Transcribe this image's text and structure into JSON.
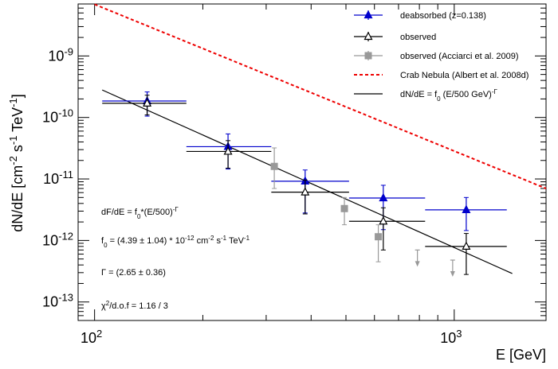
{
  "chart_data": {
    "type": "scatter",
    "xlabel": "E  [GeV]",
    "ylabel_html": [
      "dN/dE [cm",
      "-2",
      " s",
      "-1",
      " TeV",
      "-1",
      "]"
    ],
    "xscale": "log",
    "yscale": "log",
    "xlim": [
      90,
      1800
    ],
    "ylim": [
      5e-14,
      7e-09
    ],
    "x_tick_labels": [
      {
        "value": 100,
        "base": "10",
        "exp": "2"
      },
      {
        "value": 1000,
        "base": "10",
        "exp": "3"
      }
    ],
    "y_tick_labels": [
      {
        "value": 1e-13,
        "base": "10",
        "exp": "-13"
      },
      {
        "value": 1e-12,
        "base": "10",
        "exp": "-12"
      },
      {
        "value": 1e-11,
        "base": "10",
        "exp": "-11"
      },
      {
        "value": 1e-10,
        "base": "10",
        "exp": "-10"
      },
      {
        "value": 1e-09,
        "base": "10",
        "exp": "-9"
      }
    ],
    "series": [
      {
        "name": "deabsorbed (z=0.138)",
        "color": "#0000cc",
        "marker": "triangle-filled",
        "points": [
          {
            "x": 140,
            "y": 1.85e-10,
            "xlo": 105,
            "xhi": 180,
            "ylo": 1.05e-10,
            "yhi": 2.6e-10
          },
          {
            "x": 235,
            "y": 3.35e-11,
            "xlo": 180,
            "xhi": 310,
            "ylo": 1.45e-11,
            "yhi": 5.4e-11
          },
          {
            "x": 385,
            "y": 9.2e-12,
            "xlo": 310,
            "xhi": 510,
            "ylo": 2.8e-12,
            "yhi": 1.4e-11
          },
          {
            "x": 635,
            "y": 4.9e-12,
            "xlo": 510,
            "xhi": 830,
            "ylo": 1.5e-12,
            "yhi": 7.9e-12
          },
          {
            "x": 1080,
            "y": 3.15e-12,
            "xlo": 830,
            "xhi": 1400,
            "ylo": 1.45e-12,
            "yhi": 5e-12
          }
        ]
      },
      {
        "name": "observed",
        "color": "#000000",
        "marker": "triangle-open",
        "points": [
          {
            "x": 140,
            "y": 1.7e-10,
            "xlo": 105,
            "xhi": 180,
            "ylo": 1.1e-10,
            "yhi": 2.3e-10
          },
          {
            "x": 235,
            "y": 2.8e-11,
            "xlo": 180,
            "xhi": 310,
            "ylo": 1.5e-11,
            "yhi": 4.2e-11
          },
          {
            "x": 385,
            "y": 6.1e-12,
            "xlo": 310,
            "xhi": 510,
            "ylo": 2.7e-12,
            "yhi": 9.6e-12
          },
          {
            "x": 635,
            "y": 2.05e-12,
            "xlo": 510,
            "xhi": 830,
            "ylo": 7e-13,
            "yhi": 3.4e-12
          },
          {
            "x": 1080,
            "y": 8e-13,
            "xlo": 830,
            "xhi": 1400,
            "ylo": 2.8e-13,
            "yhi": 1.3e-12
          }
        ]
      },
      {
        "name": "observed (Acciarci et al. 2009)",
        "color": "#999999",
        "marker": "square-filled",
        "points": [
          {
            "x": 316,
            "y": 1.6e-11,
            "ylo": 7e-12,
            "yhi": 3.2e-11
          },
          {
            "x": 495,
            "y": 3.3e-12,
            "ylo": 1.8e-12,
            "yhi": 5e-12
          },
          {
            "x": 615,
            "y": 1.15e-12,
            "ylo": 4.5e-13,
            "yhi": 1.8e-12
          }
        ],
        "upper_limits": [
          {
            "x": 790,
            "y": 7e-13
          },
          {
            "x": 990,
            "y": 4.8e-13
          }
        ]
      }
    ],
    "lines": [
      {
        "name": "Crab Nebula (Albert et al. 2008d)",
        "color": "#ee0000",
        "style": "dashed",
        "x": [
          100,
          1800
        ],
        "y": [
          6.9e-09,
          7e-12
        ]
      },
      {
        "name": "dN/dE = f0 (E/500 GeV)^-Γ",
        "color": "#000000",
        "style": "solid",
        "x": [
          105,
          1450
        ],
        "y": [
          2.8e-10,
          2.9e-13
        ]
      }
    ],
    "legend": {
      "placement": "top-right",
      "entries": [
        {
          "key": "deabsorbed",
          "parts": [
            {
              "t": "deabsorbed (z=0.138)"
            }
          ]
        },
        {
          "key": "observed",
          "parts": [
            {
              "t": "observed"
            }
          ]
        },
        {
          "key": "acciari",
          "parts": [
            {
              "t": "observed (Acciarci et al. 2009)"
            }
          ]
        },
        {
          "key": "crab",
          "parts": [
            {
              "t": "Crab Nebula (Albert et al. 2008d)"
            }
          ]
        },
        {
          "key": "fit",
          "parts": [
            {
              "t": "dN/dE = f"
            },
            {
              "t": "0",
              "sub": true
            },
            {
              "t": " (E/500 GeV)"
            },
            {
              "t": "-Γ",
              "sup": true
            }
          ]
        }
      ]
    },
    "annotations": [
      {
        "key": "formula",
        "parts": [
          {
            "t": "dF/dE = f"
          },
          {
            "t": "0",
            "sub": true
          },
          {
            "t": "*(E/500)"
          },
          {
            "t": "-Γ",
            "sup": true
          }
        ]
      },
      {
        "key": "f0",
        "parts": [
          {
            "t": "f"
          },
          {
            "t": "0",
            "sub": true
          },
          {
            "t": " = (4.39 ± 1.04) * 10"
          },
          {
            "t": "-12",
            "sup": true
          },
          {
            "t": "   cm"
          },
          {
            "t": "-2",
            "sup": true
          },
          {
            "t": " s"
          },
          {
            "t": "-1",
            "sup": true
          },
          {
            "t": " TeV"
          },
          {
            "t": "-1",
            "sup": true
          }
        ]
      },
      {
        "key": "gamma",
        "parts": [
          {
            "t": "Γ = (2.65 ± 0.36)"
          }
        ]
      },
      {
        "key": "chi2",
        "parts": [
          {
            "t": "χ"
          },
          {
            "t": "2",
            "sup": true
          },
          {
            "t": "/d.o.f = 1.16 / 3"
          }
        ]
      }
    ]
  }
}
